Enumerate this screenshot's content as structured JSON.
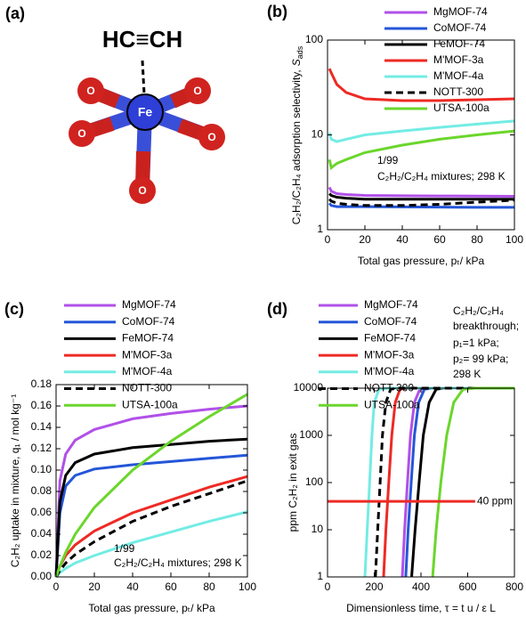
{
  "diagram": {
    "panel_label": "(a)",
    "center_atom": "Fe",
    "oxygen_atoms": [
      "O",
      "O",
      "O",
      "O",
      "O"
    ],
    "molecule": "HC≡CH"
  },
  "chart_data": [
    {
      "type": "line",
      "panel_label": "(b)",
      "xlabel": "Total gas pressure, pₜ/ kPa",
      "ylabel": "C₂H₂/C₂H₄ adsorption selectivity,",
      "ylabel_symbol": "S",
      "ylabel_subscript": "ads",
      "annotations": [
        "1/99",
        "C₂H₂/C₂H₄ mixtures; 298 K"
      ],
      "x": [
        1,
        2,
        5,
        10,
        20,
        40,
        60,
        80,
        100
      ],
      "xlim": [
        0,
        100
      ],
      "xticks": [
        0,
        20,
        40,
        60,
        80,
        100
      ],
      "ylim": [
        1,
        100
      ],
      "yticks": [
        1,
        10,
        100
      ],
      "log_y": true,
      "series": [
        {
          "name": "MgMOF-74",
          "color": "#b150e8",
          "values": [
            2.8,
            2.55,
            2.4,
            2.35,
            2.3,
            2.28,
            2.27,
            2.26,
            2.25
          ]
        },
        {
          "name": "CoMOF-74",
          "color": "#2456d8",
          "values": [
            1.9,
            1.8,
            1.75,
            1.75,
            1.75,
            1.74,
            1.73,
            1.72,
            1.72
          ]
        },
        {
          "name": "FeMOF-74",
          "color": "#000000",
          "values": [
            2.4,
            2.3,
            2.2,
            2.15,
            2.1,
            2.1,
            2.1,
            2.1,
            2.1
          ]
        },
        {
          "name": "M'MOF-3a",
          "color": "#ee2a24",
          "values": [
            50,
            45,
            34,
            28,
            24,
            23,
            23,
            23.5,
            24
          ]
        },
        {
          "name": "M'MOF-4a",
          "color": "#73ece4",
          "values": [
            10.5,
            9,
            8.5,
            9,
            10,
            11,
            12,
            13,
            14
          ]
        },
        {
          "name": "NOTT-300",
          "color": "#000000",
          "dashed": true,
          "values": [
            2.1,
            2.0,
            1.9,
            1.85,
            1.8,
            1.8,
            1.85,
            1.95,
            2.05
          ]
        },
        {
          "name": "UTSA-100a",
          "color": "#6bd62c",
          "values": [
            5.5,
            4.5,
            5,
            5.5,
            6.5,
            7.8,
            9,
            10,
            11
          ]
        }
      ]
    },
    {
      "type": "line",
      "panel_label": "(c)",
      "xlabel": "Total gas pressure, pₜ/ kPa",
      "ylabel": "C₂H₂ uptake in mixture, q₁ / mol kg⁻¹",
      "annotations": [
        "1/99",
        "C₂H₂/C₂H₄ mixtures; 298 K"
      ],
      "x": [
        0,
        2,
        5,
        10,
        20,
        40,
        60,
        80,
        100
      ],
      "xlim": [
        0,
        100
      ],
      "xticks": [
        0,
        20,
        40,
        60,
        80,
        100
      ],
      "ylim": [
        0,
        0.18
      ],
      "yticks": [
        {
          "value": 0,
          "label": "0.00"
        },
        0.02,
        0.04,
        0.06,
        0.08,
        {
          "value": 0.1,
          "label": "0.10"
        },
        0.12,
        0.14,
        0.16,
        0.18
      ],
      "series": [
        {
          "name": "MgMOF-74",
          "color": "#b150e8",
          "values": [
            0,
            0.09,
            0.115,
            0.128,
            0.138,
            0.148,
            0.153,
            0.157,
            0.16
          ]
        },
        {
          "name": "CoMOF-74",
          "color": "#2456d8",
          "values": [
            0,
            0.06,
            0.085,
            0.095,
            0.101,
            0.105,
            0.108,
            0.111,
            0.114
          ]
        },
        {
          "name": "FeMOF-74",
          "color": "#000000",
          "values": [
            0,
            0.07,
            0.095,
            0.107,
            0.115,
            0.121,
            0.124,
            0.127,
            0.129
          ]
        },
        {
          "name": "M'MOF-3a",
          "color": "#ee2a24",
          "values": [
            0,
            0.01,
            0.02,
            0.03,
            0.043,
            0.06,
            0.072,
            0.084,
            0.094
          ]
        },
        {
          "name": "M'MOF-4a",
          "color": "#73ece4",
          "values": [
            0,
            0.004,
            0.008,
            0.013,
            0.02,
            0.032,
            0.042,
            0.052,
            0.061
          ]
        },
        {
          "name": "NOTT-300",
          "color": "#000000",
          "dashed": true,
          "values": [
            0,
            0.006,
            0.013,
            0.021,
            0.033,
            0.052,
            0.066,
            0.078,
            0.09
          ]
        },
        {
          "name": "UTSA-100a",
          "color": "#6bd62c",
          "values": [
            0,
            0.01,
            0.023,
            0.04,
            0.065,
            0.1,
            0.127,
            0.15,
            0.171
          ]
        }
      ]
    },
    {
      "type": "line",
      "panel_label": "(d)",
      "xlabel": "Dimensionless time, τ = t u / ε L",
      "ylabel": "ppm C₂H₂ in exit gas",
      "annotations": [
        "C₂H₂/C₂H₄",
        "breakthrough;",
        "p₁=1  kPa;",
        "p₂= 99  kPa;",
        "298 K"
      ],
      "xlim": [
        0,
        800
      ],
      "xticks": [
        0,
        200,
        400,
        600,
        800
      ],
      "ylim": [
        1,
        10000
      ],
      "yticks": [
        1,
        10,
        100,
        1000,
        10000
      ],
      "log_y": true,
      "threshold": {
        "value": 40,
        "label": "40 ppm",
        "color": "#ee2a24"
      },
      "series": [
        {
          "name": "MgMOF-74",
          "color": "#b150e8",
          "x": [
            320,
            330,
            342,
            355,
            372,
            395,
            430,
            800
          ],
          "values": [
            1,
            10,
            100,
            1000,
            5000,
            9500,
            10000,
            10000
          ]
        },
        {
          "name": "CoMOF-74",
          "color": "#2456d8",
          "x": [
            335,
            345,
            358,
            372,
            390,
            415,
            450,
            800
          ],
          "values": [
            1,
            10,
            100,
            1000,
            5000,
            9500,
            10000,
            10000
          ]
        },
        {
          "name": "FeMOF-74",
          "color": "#000000",
          "x": [
            360,
            375,
            392,
            410,
            435,
            465,
            500,
            800
          ],
          "values": [
            1,
            10,
            100,
            1000,
            5000,
            9500,
            10000,
            10000
          ]
        },
        {
          "name": "M'MOF-3a",
          "color": "#ee2a24",
          "x": [
            240,
            250,
            262,
            275,
            290,
            310,
            340,
            800
          ],
          "values": [
            1,
            10,
            100,
            1000,
            5000,
            9500,
            10000,
            10000
          ]
        },
        {
          "name": "M'MOF-4a",
          "color": "#73ece4",
          "x": [
            160,
            170,
            180,
            190,
            200,
            220,
            260,
            800
          ],
          "values": [
            1,
            10,
            100,
            1000,
            5000,
            9500,
            10000,
            10000
          ]
        },
        {
          "name": "NOTT-300",
          "color": "#000000",
          "dashed": true,
          "x": [
            205,
            215,
            225,
            235,
            250,
            270,
            300,
            800
          ],
          "values": [
            1,
            10,
            100,
            1000,
            5000,
            9500,
            10000,
            10000
          ]
        },
        {
          "name": "UTSA-100a",
          "color": "#6bd62c",
          "x": [
            450,
            465,
            485,
            510,
            540,
            580,
            630,
            800
          ],
          "values": [
            1,
            10,
            100,
            1000,
            5000,
            9500,
            10000,
            10000
          ]
        }
      ]
    }
  ]
}
